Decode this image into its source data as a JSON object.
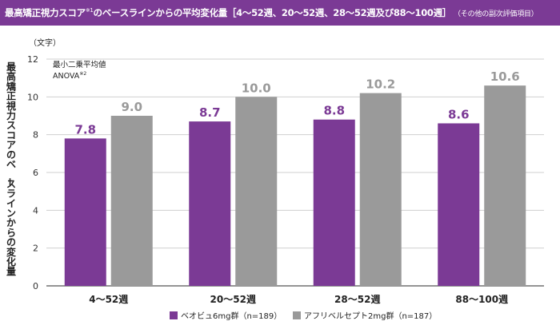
{
  "title": {
    "main": "最高矯正視力スコア",
    "main_sup": "※1",
    "main_rest": "のベースラインからの平均変化量［4～52週、20～52週、28～52週及び88～100週］",
    "sub": "（その他の副次評価項目）"
  },
  "chart_data": {
    "type": "bar",
    "categories": [
      "4～52週",
      "20～52週",
      "28～52週",
      "88～100週"
    ],
    "series": [
      {
        "name": "ベオビュ6mg群（n=189）",
        "color": "#7b3a95",
        "values": [
          7.8,
          8.7,
          8.8,
          8.6
        ],
        "labels": [
          "7.8",
          "8.7",
          "8.8",
          "8.6"
        ]
      },
      {
        "name": "アフリベルセプト2mg群（n=187）",
        "color": "#9a9a9a",
        "values": [
          9.0,
          10.0,
          10.2,
          10.6
        ],
        "labels": [
          "9.0",
          "10.0",
          "10.2",
          "10.6"
        ]
      }
    ],
    "ylim": [
      0,
      12
    ],
    "yticks": [
      "0",
      "2",
      "4",
      "6",
      "8",
      "10",
      "12"
    ],
    "ylabel": "最高矯正視力スコアのベースラインからの変化量",
    "unit": "（文字）",
    "annotation": {
      "line1": "最小二乗平均値",
      "line2": "ANOVA",
      "line2_sup": "※2"
    },
    "gridlines": true,
    "legend_position": "bottom"
  }
}
